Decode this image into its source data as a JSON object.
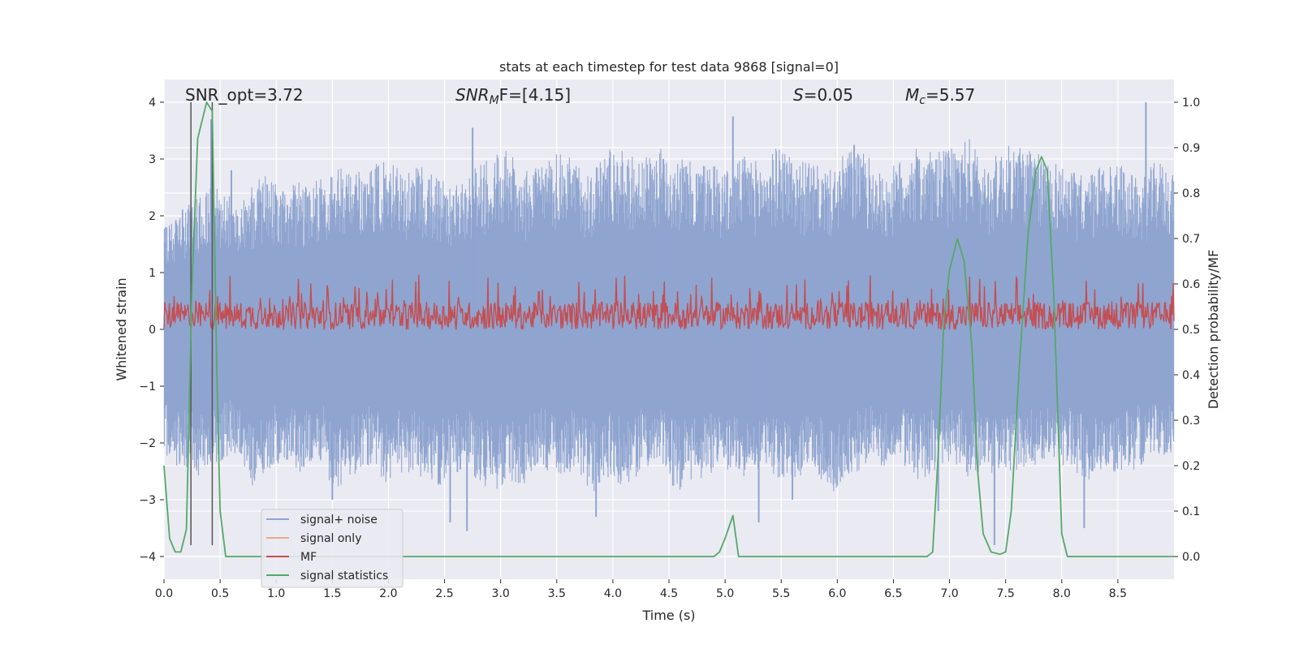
{
  "chart_data": {
    "type": "line",
    "title": "stats at each timestep for test data 9868 [signal=0]",
    "xlabel": "Time (s)",
    "ylabel_left": "Whitened strain",
    "ylabel_right": "Detection probability/MF",
    "xlim": [
      0.0,
      9.0
    ],
    "ylim_left": [
      -4.4,
      4.4
    ],
    "ylim_right": [
      -0.05,
      1.05
    ],
    "x_ticks": [
      "0.0",
      "0.5",
      "1.0",
      "1.5",
      "2.0",
      "2.5",
      "3.0",
      "3.5",
      "4.0",
      "4.5",
      "5.0",
      "5.5",
      "6.0",
      "6.5",
      "7.0",
      "7.5",
      "8.0",
      "8.5"
    ],
    "y_ticks_left": [
      "4",
      "3",
      "2",
      "1",
      "0",
      "−1",
      "−2",
      "−3",
      "−4"
    ],
    "y_ticks_right": [
      "1.0",
      "0.9",
      "0.8",
      "0.7",
      "0.6",
      "0.5",
      "0.4",
      "0.3",
      "0.2",
      "0.1",
      "0.0"
    ],
    "grid": true,
    "legend_position": "lower-left",
    "annotations": {
      "snr_opt": "SNR_opt=3.72",
      "snr_mf_sym": "SNR",
      "snr_mf_sub": "M",
      "snr_mf_rest": "F=[4.15]",
      "s_sym": "S",
      "s_rest": "=0.05",
      "mc_sym": "M",
      "mc_sub": "c",
      "mc_rest": "=5.57"
    },
    "vertical_markers_x": [
      0.24,
      0.43
    ],
    "series": [
      {
        "name": "signal+ noise",
        "color": "#8fa5d0",
        "axis": "left",
        "envelope_upper": [
          1.9,
          2.1,
          2.4,
          2.6,
          2.3,
          2.5,
          2.8,
          2.5,
          2.6,
          2.7,
          2.9,
          2.7,
          2.9,
          3.0,
          2.8,
          2.9,
          2.7,
          2.5,
          2.9,
          3.0,
          3.2,
          2.8,
          2.9,
          3.1,
          3.0,
          2.8,
          3.3,
          3.1,
          3.0,
          3.2,
          3.1,
          2.9,
          3.0,
          2.8,
          3.1,
          2.9,
          3.3,
          3.0,
          2.9,
          2.8,
          3.2,
          3.1,
          2.7,
          3.0,
          3.2,
          3.1,
          3.2,
          3.4,
          2.9,
          3.2,
          3.3,
          3.1,
          3.0,
          2.8,
          2.7,
          3.0,
          2.9,
          2.6,
          3.0,
          2.8
        ],
        "envelope_lower": [
          -2.2,
          -2.5,
          -2.6,
          -2.4,
          -2.2,
          -2.8,
          -2.5,
          -2.3,
          -2.6,
          -2.2,
          -2.9,
          -2.6,
          -2.4,
          -2.7,
          -2.5,
          -2.6,
          -2.8,
          -2.5,
          -2.6,
          -2.9,
          -2.7,
          -2.8,
          -2.4,
          -2.6,
          -2.5,
          -2.9,
          -2.6,
          -2.8,
          -2.5,
          -2.4,
          -2.9,
          -2.7,
          -2.6,
          -2.5,
          -2.6,
          -2.4,
          -2.7,
          -2.6,
          -2.5,
          -2.9,
          -2.6,
          -2.4,
          -2.5,
          -2.3,
          -2.7,
          -2.5,
          -2.4,
          -2.6,
          -2.5,
          -2.6,
          -2.5,
          -2.4,
          -2.3,
          -2.5,
          -2.7,
          -2.4,
          -2.6,
          -2.4,
          -2.2,
          -2.3
        ],
        "peaks": [
          [
            0.42,
            3.7
          ],
          [
            0.6,
            2.8
          ],
          [
            2.75,
            3.55
          ],
          [
            5.07,
            3.75
          ],
          [
            8.75,
            4.0
          ],
          [
            4.45,
            3.0
          ],
          [
            6.15,
            3.25
          ],
          [
            5.6,
            -3.0
          ],
          [
            2.55,
            -3.4
          ],
          [
            2.7,
            -3.55
          ],
          [
            3.85,
            -3.3
          ],
          [
            5.3,
            -3.4
          ],
          [
            7.4,
            -3.8
          ],
          [
            8.2,
            -3.5
          ],
          [
            1.5,
            -3.0
          ],
          [
            6.9,
            -3.2
          ]
        ]
      },
      {
        "name": "signal only",
        "color": "#e8a98c",
        "axis": "left",
        "values": []
      },
      {
        "name": "MF",
        "color": "#c44e52",
        "axis": "right",
        "base": 0.5,
        "upper_typical": 0.56,
        "upper_max": 0.62
      },
      {
        "name": "signal statistics",
        "color": "#55a868",
        "axis": "right",
        "x": [
          0.0,
          0.05,
          0.1,
          0.15,
          0.2,
          0.25,
          0.3,
          0.38,
          0.43,
          0.47,
          0.5,
          0.55,
          0.6,
          4.9,
          4.95,
          5.0,
          5.07,
          5.12,
          5.2,
          6.8,
          6.85,
          6.9,
          6.95,
          7.0,
          7.07,
          7.13,
          7.2,
          7.25,
          7.3,
          7.37,
          7.45,
          7.5,
          7.55,
          7.62,
          7.7,
          7.77,
          7.82,
          7.87,
          7.93,
          8.0,
          8.05,
          8.13,
          8.2,
          9.0
        ],
        "y": [
          0.2,
          0.04,
          0.01,
          0.01,
          0.06,
          0.6,
          0.92,
          1.0,
          0.98,
          0.42,
          0.1,
          0.0,
          0.0,
          0.0,
          0.01,
          0.04,
          0.09,
          0.0,
          0.0,
          0.0,
          0.01,
          0.23,
          0.52,
          0.63,
          0.7,
          0.65,
          0.46,
          0.19,
          0.05,
          0.01,
          0.005,
          0.01,
          0.1,
          0.41,
          0.71,
          0.85,
          0.88,
          0.85,
          0.57,
          0.05,
          0.0,
          0.0,
          0.0,
          0.0
        ]
      }
    ]
  }
}
